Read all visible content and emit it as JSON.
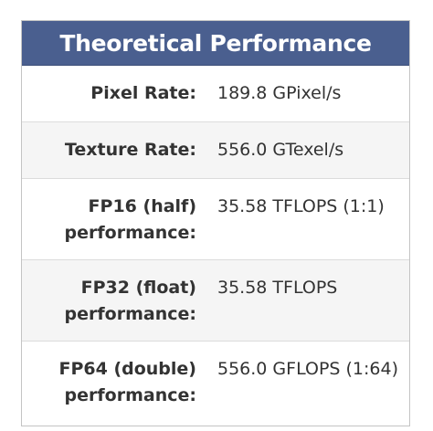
{
  "title": "Theoretical Performance",
  "rows": [
    {
      "label": "Pixel Rate:",
      "value": "189.8 GPixel/s"
    },
    {
      "label": "Texture Rate:",
      "value": "556.0 GTexel/s"
    },
    {
      "label_line1": "FP16 (half)",
      "label_line2": "performance:",
      "value": "35.58 TFLOPS (1:1)"
    },
    {
      "label_line1": "FP32 (float)",
      "label_line2": "performance:",
      "value": "35.58 TFLOPS"
    },
    {
      "label_line1": "FP64 (double)",
      "label_line2": "performance:",
      "value": "556.0 GFLOPS (1:64)"
    }
  ],
  "colors": {
    "header_bg": "#4a5f8f",
    "header_text": "#ffffff",
    "row_alt_bg": "#f5f5f5",
    "text": "#333333"
  }
}
